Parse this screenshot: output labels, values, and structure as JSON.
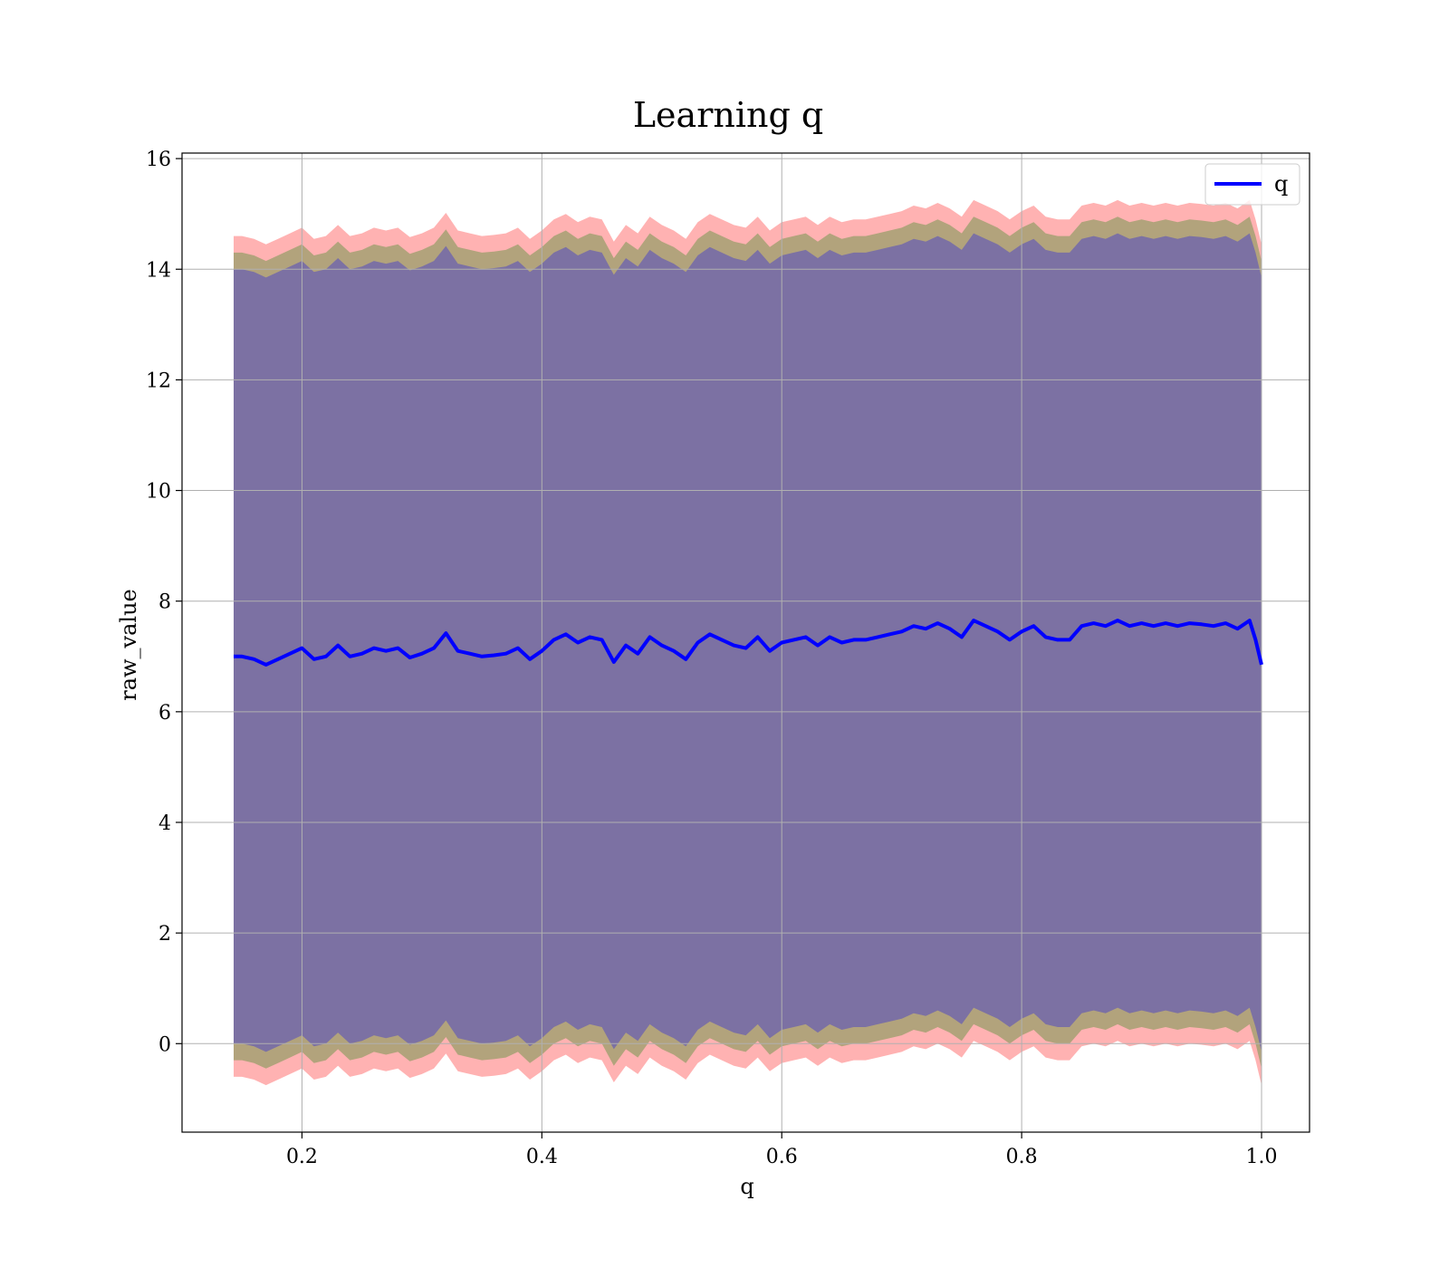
{
  "chart_data": {
    "type": "line",
    "title": "Learning q",
    "xlabel": "q",
    "ylabel": "raw_value",
    "xlim": [
      0.1,
      1.04
    ],
    "ylim": [
      -1.6,
      16.1
    ],
    "grid": true,
    "legend": {
      "placement": "top-right",
      "entries": [
        "q"
      ]
    },
    "x_ticks": [
      0.2,
      0.4,
      0.6,
      0.8,
      1.0
    ],
    "x_tick_labels": [
      "0.2",
      "0.4",
      "0.6",
      "0.8",
      "1.0"
    ],
    "y_ticks": [
      0,
      2,
      4,
      6,
      8,
      10,
      12,
      14,
      16
    ],
    "y_tick_labels": [
      "0",
      "2",
      "4",
      "6",
      "8",
      "10",
      "12",
      "14",
      "16"
    ],
    "series": [
      {
        "name": "q",
        "color": "#0000ff",
        "x": [
          0.143,
          0.15,
          0.16,
          0.17,
          0.18,
          0.19,
          0.2,
          0.21,
          0.22,
          0.23,
          0.24,
          0.25,
          0.26,
          0.27,
          0.28,
          0.29,
          0.3,
          0.31,
          0.32,
          0.33,
          0.34,
          0.35,
          0.36,
          0.37,
          0.38,
          0.39,
          0.4,
          0.41,
          0.42,
          0.43,
          0.44,
          0.45,
          0.46,
          0.47,
          0.48,
          0.49,
          0.5,
          0.51,
          0.52,
          0.53,
          0.54,
          0.55,
          0.56,
          0.57,
          0.58,
          0.59,
          0.6,
          0.61,
          0.62,
          0.63,
          0.64,
          0.65,
          0.66,
          0.67,
          0.68,
          0.69,
          0.7,
          0.71,
          0.72,
          0.73,
          0.74,
          0.75,
          0.76,
          0.77,
          0.78,
          0.79,
          0.8,
          0.81,
          0.82,
          0.83,
          0.84,
          0.85,
          0.86,
          0.87,
          0.88,
          0.89,
          0.9,
          0.91,
          0.92,
          0.93,
          0.94,
          0.95,
          0.96,
          0.97,
          0.98,
          0.99,
          0.995,
          1.0
        ],
        "values": [
          7.0,
          7.0,
          6.95,
          6.85,
          6.95,
          7.05,
          7.15,
          6.95,
          7.0,
          7.2,
          7.0,
          7.05,
          7.15,
          7.1,
          7.15,
          6.98,
          7.05,
          7.15,
          7.42,
          7.1,
          7.05,
          7.0,
          7.02,
          7.05,
          7.15,
          6.95,
          7.1,
          7.3,
          7.4,
          7.25,
          7.35,
          7.3,
          6.9,
          7.2,
          7.05,
          7.35,
          7.2,
          7.1,
          6.95,
          7.25,
          7.4,
          7.3,
          7.2,
          7.15,
          7.35,
          7.1,
          7.25,
          7.3,
          7.35,
          7.2,
          7.35,
          7.25,
          7.3,
          7.3,
          7.35,
          7.4,
          7.45,
          7.55,
          7.5,
          7.6,
          7.5,
          7.35,
          7.65,
          7.55,
          7.45,
          7.3,
          7.45,
          7.55,
          7.35,
          7.3,
          7.3,
          7.55,
          7.6,
          7.55,
          7.65,
          7.55,
          7.6,
          7.55,
          7.6,
          7.55,
          7.6,
          7.58,
          7.55,
          7.6,
          7.5,
          7.65,
          7.3,
          6.85
        ]
      }
    ],
    "bands": [
      {
        "color": "#ff0000",
        "opacity": 0.3,
        "offset": 7.6
      },
      {
        "color": "#008000",
        "opacity": 0.3,
        "offset": 7.3
      },
      {
        "color": "#0000ff",
        "opacity": 0.3,
        "offset": 7.0
      }
    ]
  }
}
